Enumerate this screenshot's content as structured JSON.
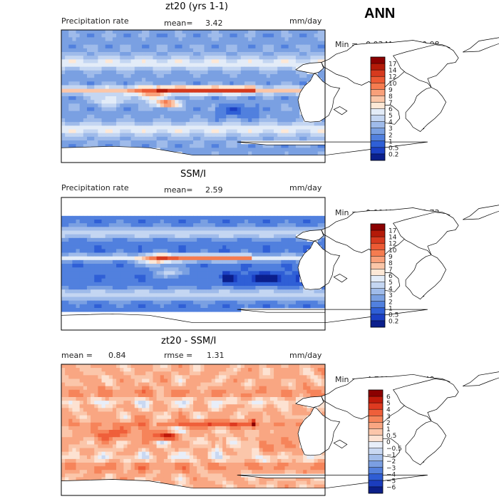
{
  "season": "ANN",
  "chart_data": [
    {
      "type": "heatmap",
      "title": "zt20 (yrs 1-1)",
      "left_label": "Precipitation rate",
      "mean_label": "mean=",
      "mean_value": "3.42",
      "units": "mm/day",
      "min_label": "Min =",
      "min_value": "0.03",
      "max_label": "Max =",
      "max_value": "30.08",
      "colorbar_levels": [
        "17",
        "14",
        "12",
        "10",
        "9",
        "8",
        "7",
        "6",
        "5",
        "4",
        "3",
        "2",
        "1",
        "0.5",
        "0.2"
      ],
      "colorbar_colors": [
        "#8b0000",
        "#b41a08",
        "#d63a1e",
        "#ec5a34",
        "#f57c50",
        "#f9a07a",
        "#fbc6a8",
        "#fde8d6",
        "#e3ecf8",
        "#c4d6f2",
        "#9fbbea",
        "#7aa0e2",
        "#5180de",
        "#2f5fd6",
        "#1b40c4",
        "#0b1f8c"
      ],
      "field": "model"
    },
    {
      "type": "heatmap",
      "title": "SSM/I",
      "left_label": "Precipitation rate",
      "mean_label": "mean=",
      "mean_value": "2.59",
      "units": "mm/day",
      "min_label": "Min =",
      "min_value": "0.00",
      "max_label": "Max =",
      "max_value": "23.73",
      "colorbar_levels": [
        "17",
        "14",
        "12",
        "10",
        "9",
        "8",
        "7",
        "6",
        "5",
        "4",
        "3",
        "2",
        "1",
        "0.5",
        "0.2"
      ],
      "colorbar_colors": [
        "#8b0000",
        "#b41a08",
        "#d63a1e",
        "#ec5a34",
        "#f57c50",
        "#f9a07a",
        "#fbc6a8",
        "#fde8d6",
        "#e3ecf8",
        "#c4d6f2",
        "#9fbbea",
        "#7aa0e2",
        "#5180de",
        "#2f5fd6",
        "#1b40c4",
        "#0b1f8c"
      ],
      "field": "obs"
    },
    {
      "type": "heatmap",
      "title": "zt20 - SSM/I",
      "left_label": "mean =",
      "left_value": "0.84",
      "rmse_label": "rmse =",
      "rmse_value": "1.31",
      "units": "mm/day",
      "min_label": "Min =",
      "min_value": "−4.76",
      "max_label": "Max =",
      "max_value": "8.40",
      "colorbar_levels": [
        "6",
        "5",
        "4",
        "3",
        "2",
        "1",
        "0.5",
        "0",
        "−0.5",
        "−1",
        "−2",
        "−3",
        "−4",
        "−5",
        "−6"
      ],
      "colorbar_colors": [
        "#8b0000",
        "#c01a0a",
        "#de3a20",
        "#ef5f3a",
        "#f6845a",
        "#f9a682",
        "#fbc6aa",
        "#fde2d2",
        "#e8eef9",
        "#c9d8f2",
        "#a3bdea",
        "#7b9fe2",
        "#5480dc",
        "#2f5dd4",
        "#1b3dbd",
        "#0c1f88"
      ],
      "field": "diff"
    }
  ]
}
